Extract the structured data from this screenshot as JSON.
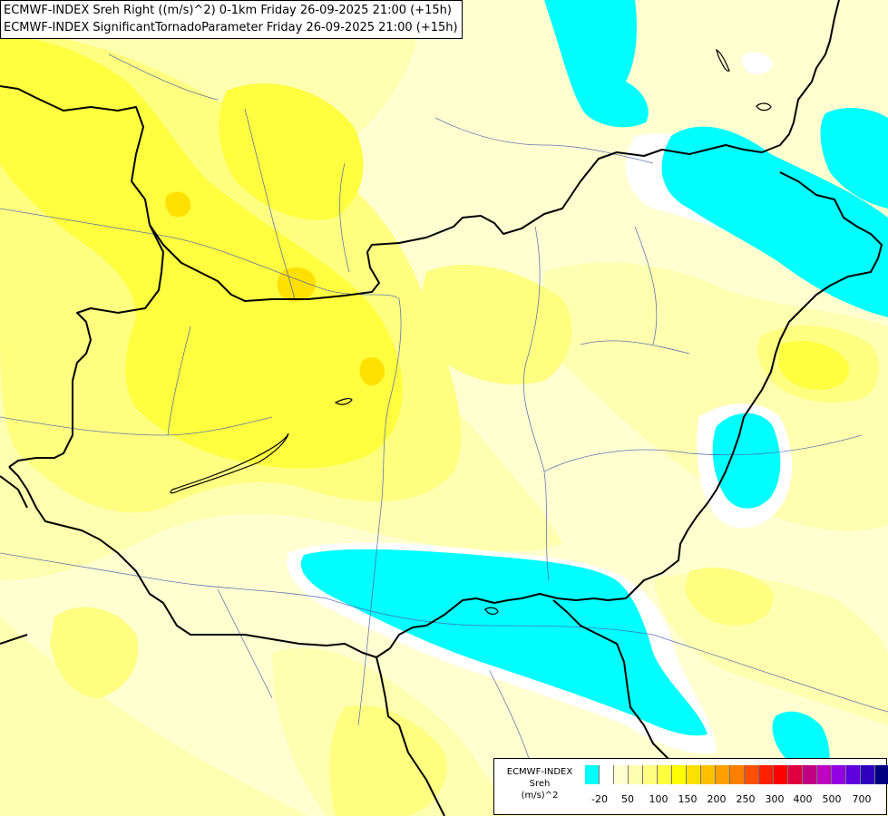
{
  "header": {
    "line1": "ECMWF-INDEX Sreh Right ((m/s)^2) 0-1km Friday 26-09-2025 21:00 (+15h)",
    "line2": "ECMWF-INDEX SignificantTornadoParameter Friday 26-09-2025 21:00 (+15h)"
  },
  "legend": {
    "title1": "ECMWF-INDEX",
    "title2": "Sreh",
    "unit": "(m/s)^2",
    "colors": [
      "#00ffff",
      "#ffffff",
      "#ffffd0",
      "#ffffb0",
      "#ffff80",
      "#ffff40",
      "#ffff00",
      "#ffe000",
      "#ffc000",
      "#ffa000",
      "#ff8000",
      "#ff5000",
      "#ff2000",
      "#ff0000",
      "#e00040",
      "#c00080",
      "#c000c0",
      "#9000e0",
      "#6000e0",
      "#3000c0",
      "#000080"
    ],
    "ticks": [
      "-20",
      "50",
      "100",
      "150",
      "200",
      "250",
      "300",
      "400",
      "500",
      "700"
    ]
  },
  "map": {
    "background_color": "#ffffd0",
    "field_colors": {
      "light": "#ffffb0",
      "mid": "#ffff80",
      "strong": "#ffff40",
      "peak": "#ffe000",
      "negative": "#00ffff",
      "zero": "#ffffff"
    }
  }
}
